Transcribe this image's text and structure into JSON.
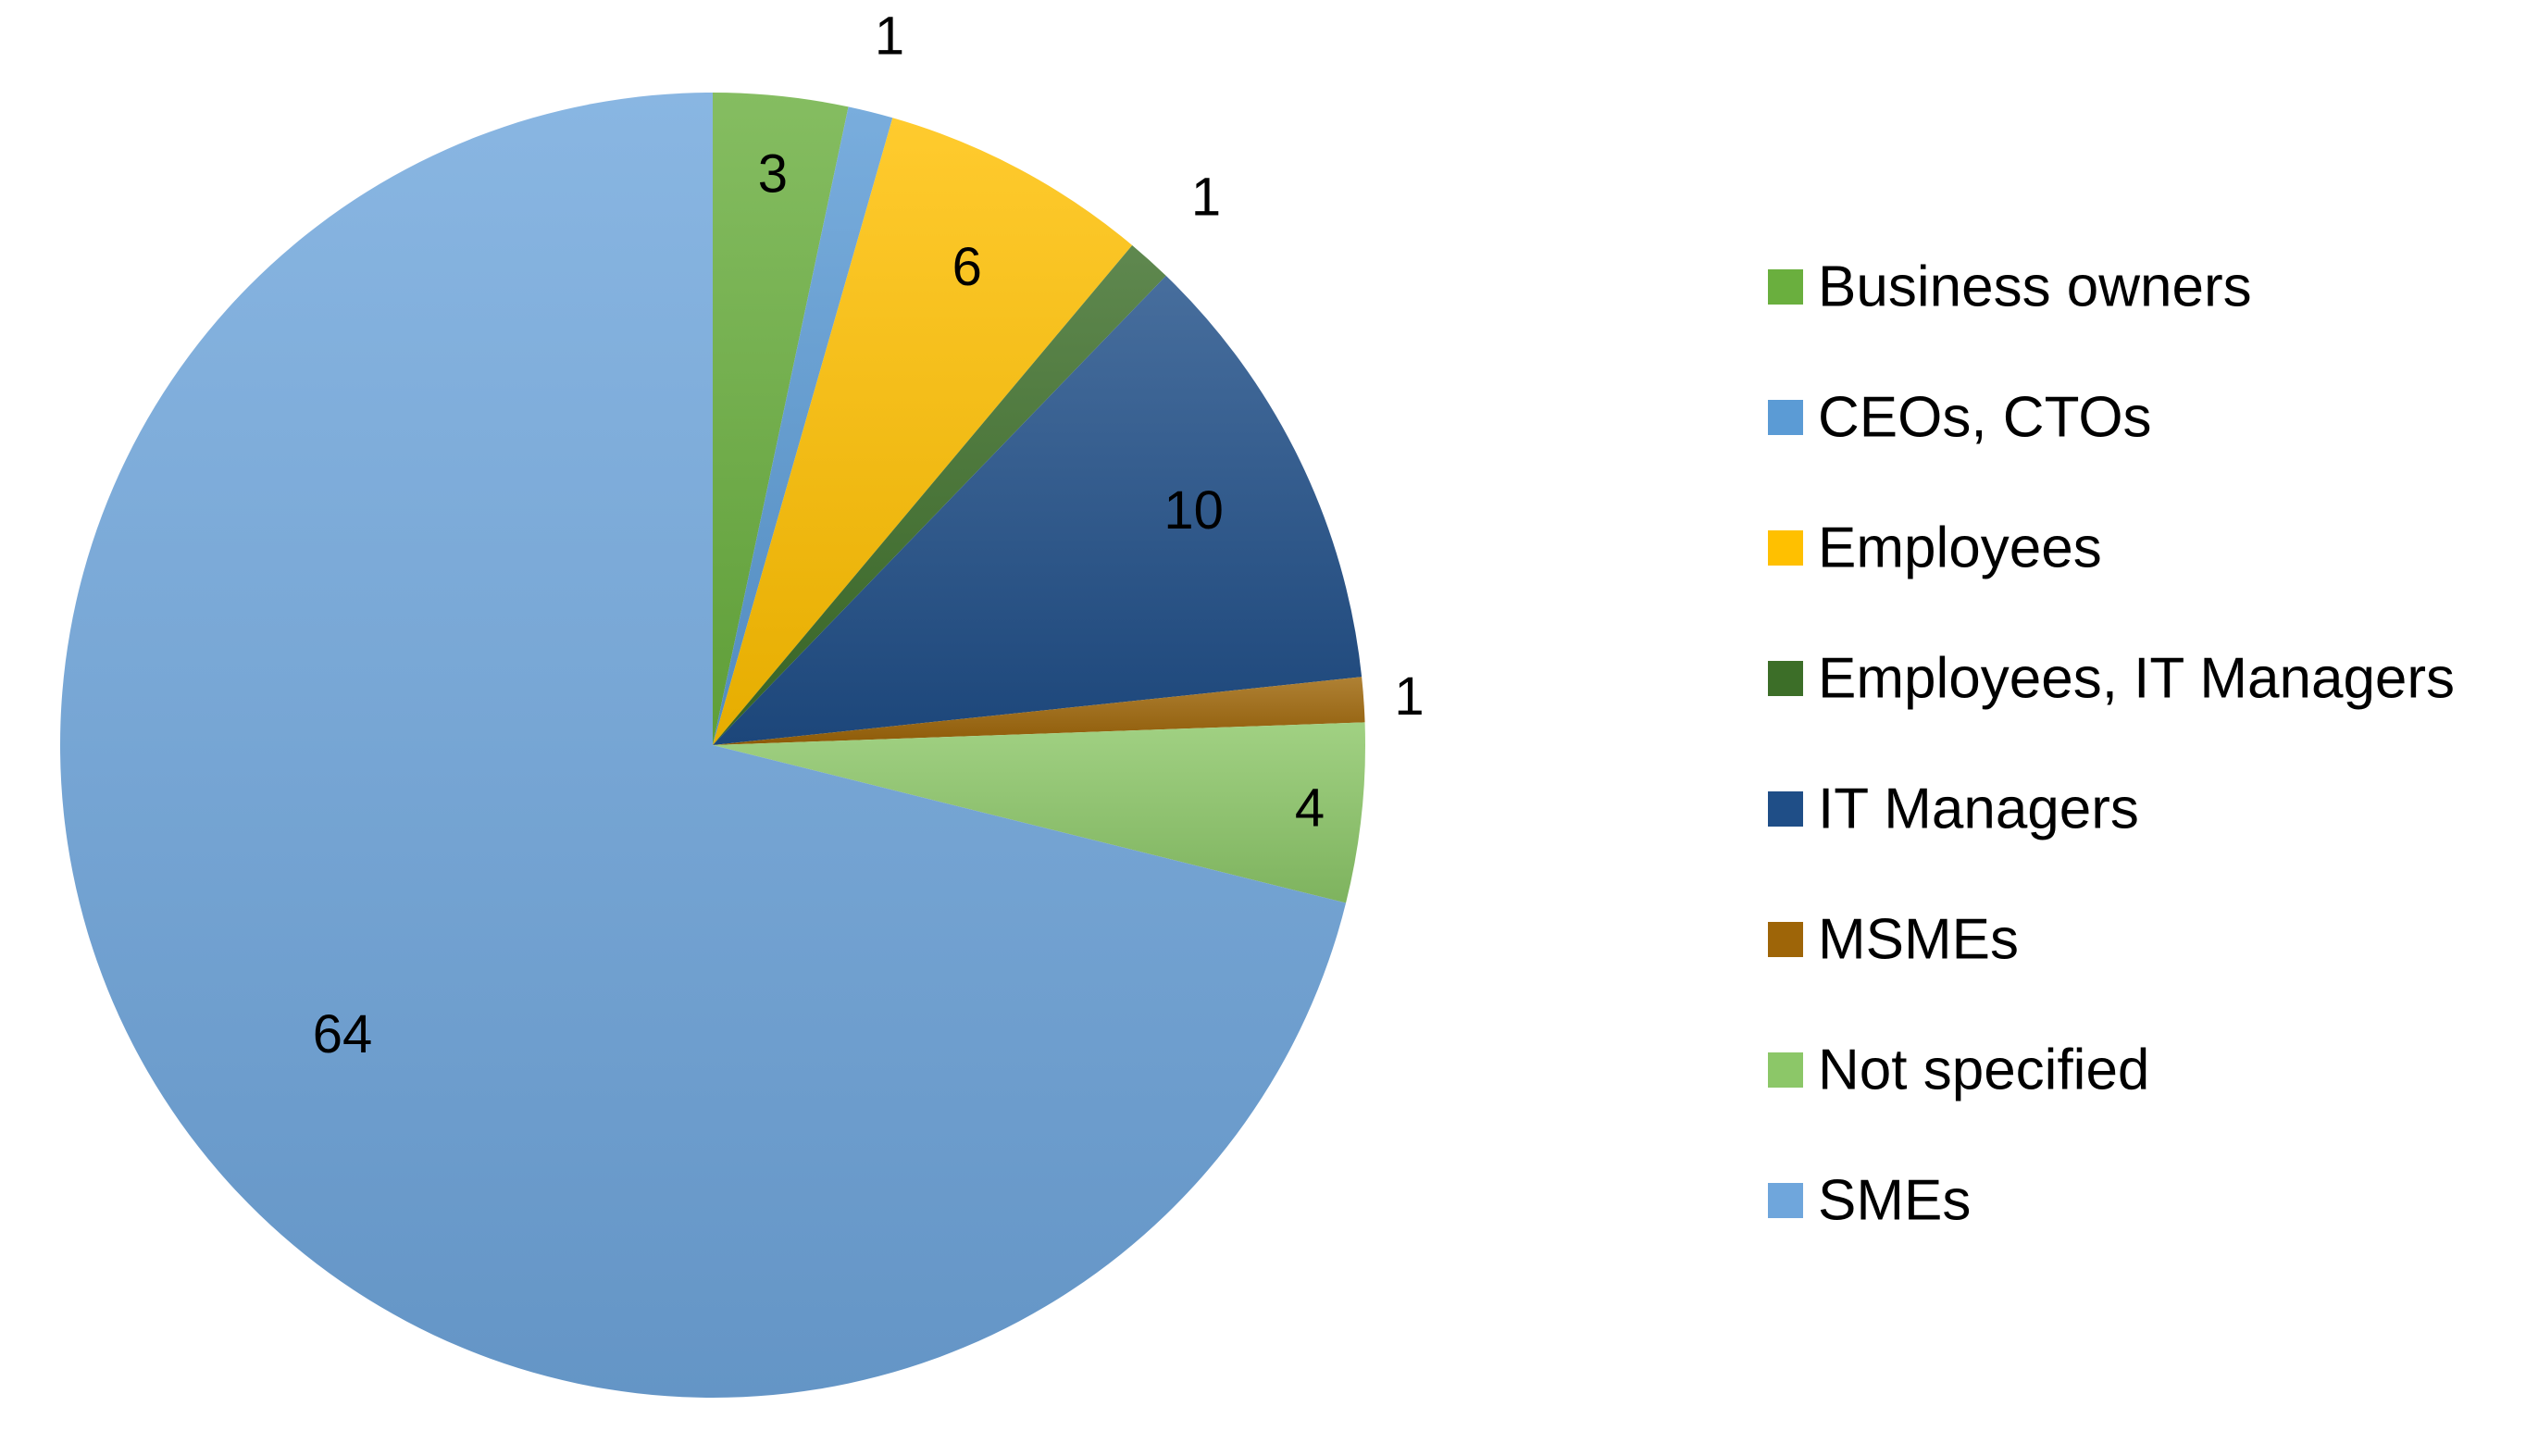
{
  "chart_data": {
    "type": "pie",
    "title": "",
    "legend_position": "right",
    "start_angle_deg": 0,
    "direction": "clockwise",
    "slices": [
      {
        "label": "Business owners",
        "value": 3,
        "color": "#6aaf3e",
        "label_text": "3"
      },
      {
        "label": "CEOs, CTOs",
        "value": 1,
        "color": "#5b9bd5",
        "label_text": "1"
      },
      {
        "label": "Employees",
        "value": 6,
        "color": "#ffc000",
        "label_text": "6"
      },
      {
        "label": "Employees, IT Managers",
        "value": 1,
        "color": "#3c6e28",
        "label_text": "1"
      },
      {
        "label": "IT Managers",
        "value": 10,
        "color": "#1f4e87",
        "label_text": "10"
      },
      {
        "label": "MSMEs",
        "value": 1,
        "color": "#9e6508",
        "label_text": "1"
      },
      {
        "label": "Not specified",
        "value": 4,
        "color": "#8cc768",
        "label_text": "4"
      },
      {
        "label": "SMEs",
        "value": 64,
        "color": "#6fa6dc",
        "label_text": "64"
      }
    ]
  }
}
